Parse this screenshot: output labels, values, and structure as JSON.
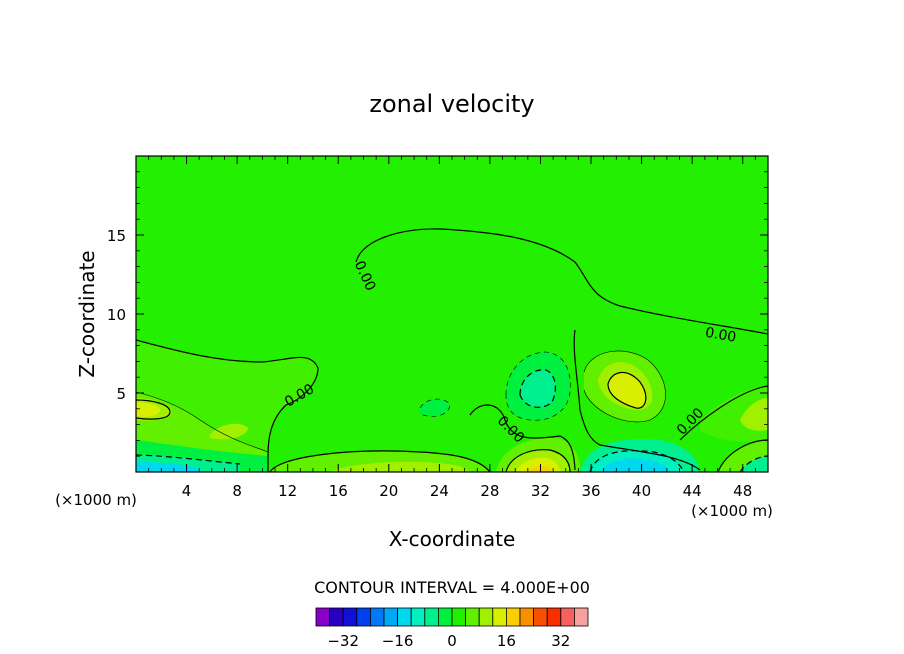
{
  "chart_data": {
    "type": "heatmap",
    "subtype": "filled-contour",
    "title": "zonal velocity",
    "xlabel": "X-coordinate",
    "ylabel": "Z-coordinate",
    "x_unit_left": "(×1000 m)",
    "x_unit_right": "(×1000 m)",
    "xlim": [
      0,
      50
    ],
    "ylim": [
      0,
      20
    ],
    "x_ticks": [
      4,
      8,
      12,
      16,
      20,
      24,
      28,
      32,
      36,
      40,
      44,
      48
    ],
    "y_ticks": [
      5,
      10,
      15
    ],
    "contour_labels": [
      "0.00",
      "0.00",
      "0.00",
      "0.00",
      "0.00",
      "0.00"
    ],
    "contour_interval_text": "CONTOUR INTERVAL = 4.000E+00",
    "colorbar": {
      "levels": [
        -36,
        -32,
        -28,
        -24,
        -20,
        -16,
        -12,
        -8,
        -4,
        0,
        4,
        8,
        12,
        16,
        20,
        24,
        28,
        32,
        36
      ],
      "tick_values": [
        -32,
        -16,
        0,
        16,
        32
      ],
      "tick_labels": [
        "−32",
        "−16",
        "0",
        "16",
        "32"
      ],
      "colors": [
        "#8800c8",
        "#2a00c0",
        "#1010d8",
        "#0040f0",
        "#0078f8",
        "#00a8f8",
        "#00d8f0",
        "#00f0c0",
        "#00f090",
        "#00f040",
        "#20f000",
        "#60f000",
        "#a0f000",
        "#d8f000",
        "#f8d000",
        "#f89000",
        "#f85000",
        "#f83000",
        "#f86060",
        "#f8a0a0"
      ]
    },
    "background_value_range": [
      0,
      4
    ],
    "background_color": "#22f000",
    "features": [
      {
        "kind": "jet-positive",
        "x": 39,
        "z": 5.5,
        "color": "#d8f000"
      },
      {
        "kind": "jet-negative",
        "x": 31,
        "z": 5.5,
        "color": "#00f0c0"
      },
      {
        "kind": "low-level-positive",
        "x": 32,
        "z": 0.5,
        "color": "#f8d000"
      },
      {
        "kind": "low-level-negative",
        "x": 41,
        "z": 0.5,
        "color": "#00d8f0"
      }
    ]
  }
}
